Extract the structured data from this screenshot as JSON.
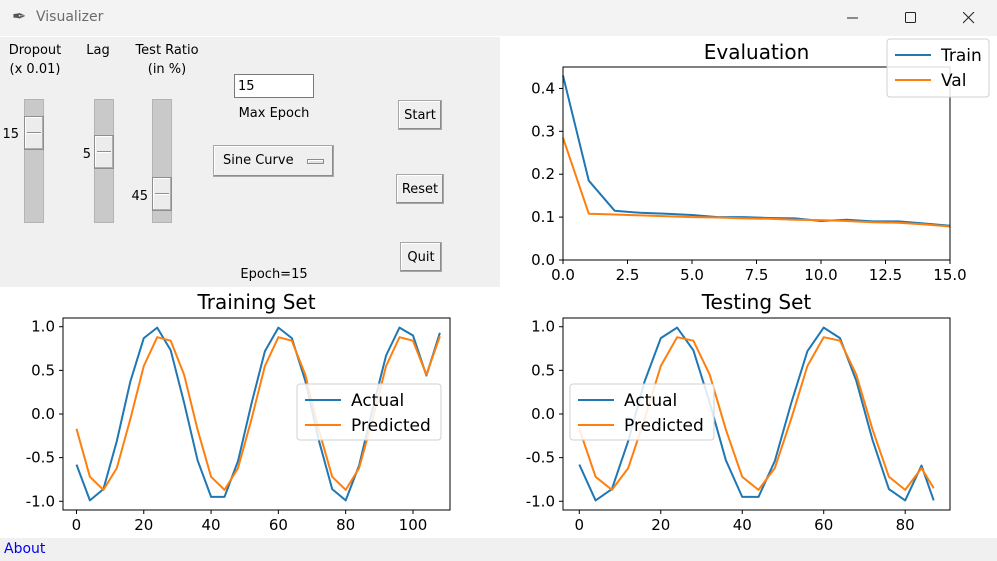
{
  "window": {
    "title": "Visualizer",
    "app_icon": "feather-icon",
    "controls": [
      "minimize-icon",
      "maximize-icon",
      "close-icon"
    ]
  },
  "controls": {
    "dropout": {
      "label_line1": "Dropout",
      "label_line2": "(x 0.01)",
      "value": 15,
      "min": 0,
      "max": 100
    },
    "lag": {
      "label": "Lag",
      "value": 5,
      "min": 0,
      "max": 20
    },
    "test_ratio": {
      "label_line1": "Test Ratio",
      "label_line2": "(in %)",
      "value": 45,
      "min": 0,
      "max": 75
    },
    "max_epoch": {
      "value": "15",
      "label": "Max Epoch"
    },
    "dataset": {
      "selected": "Sine Curve"
    },
    "epoch_status": "Epoch=15",
    "buttons": {
      "start": "Start",
      "reset": "Reset",
      "quit": "Quit"
    }
  },
  "footer": {
    "about": "About"
  },
  "colors": {
    "blue": "#1f77b4",
    "orange": "#ff7f0e"
  },
  "chart_data": [
    {
      "type": "line",
      "title": "Evaluation",
      "xlim": [
        0,
        15
      ],
      "ylim": [
        0,
        0.45
      ],
      "xticks": [
        "0.0",
        "2.5",
        "5.0",
        "7.5",
        "10.0",
        "12.5",
        "15.0"
      ],
      "yticks": [
        "0.0",
        "0.1",
        "0.2",
        "0.3",
        "0.4"
      ],
      "legend": "top-right",
      "x": [
        0,
        1,
        2,
        3,
        4,
        5,
        6,
        7,
        8,
        9,
        10,
        11,
        12,
        13,
        14,
        15
      ],
      "series": [
        {
          "name": "Train",
          "values": [
            0.43,
            0.185,
            0.115,
            0.11,
            0.108,
            0.105,
            0.1,
            0.1,
            0.098,
            0.097,
            0.091,
            0.094,
            0.09,
            0.09,
            0.085,
            0.08
          ]
        },
        {
          "name": "Val",
          "values": [
            0.285,
            0.108,
            0.106,
            0.104,
            0.102,
            0.1,
            0.099,
            0.097,
            0.096,
            0.094,
            0.093,
            0.091,
            0.088,
            0.087,
            0.083,
            0.078
          ]
        }
      ]
    },
    {
      "type": "line",
      "title": "Training Set",
      "xlim": [
        -4,
        111
      ],
      "ylim": [
        -1.1,
        1.1
      ],
      "xticks": [
        "0",
        "20",
        "40",
        "60",
        "80",
        "100"
      ],
      "yticks": [
        "-1.0",
        "-0.5",
        "0.0",
        "0.5",
        "1.0"
      ],
      "legend": "center-right",
      "x": [
        0,
        4,
        8,
        12,
        16,
        20,
        24,
        28,
        32,
        36,
        40,
        44,
        48,
        52,
        56,
        60,
        64,
        68,
        72,
        76,
        80,
        84,
        88,
        92,
        96,
        100,
        104,
        108
      ],
      "series": [
        {
          "name": "Actual",
          "values": [
            -0.58,
            -0.99,
            -0.86,
            -0.31,
            0.37,
            0.87,
            0.99,
            0.73,
            0.13,
            -0.53,
            -0.95,
            -0.95,
            -0.54,
            0.12,
            0.72,
            0.99,
            0.87,
            0.38,
            -0.3,
            -0.86,
            -0.99,
            -0.59,
            0.06,
            0.67,
            0.99,
            0.9,
            0.44,
            0.93
          ]
        },
        {
          "name": "Predicted",
          "values": [
            -0.17,
            -0.72,
            -0.87,
            -0.62,
            -0.06,
            0.55,
            0.88,
            0.84,
            0.45,
            -0.18,
            -0.72,
            -0.87,
            -0.62,
            -0.06,
            0.55,
            0.88,
            0.84,
            0.45,
            -0.18,
            -0.72,
            -0.87,
            -0.62,
            -0.06,
            0.55,
            0.88,
            0.84,
            0.45,
            0.89
          ]
        }
      ]
    },
    {
      "type": "line",
      "title": "Testing Set",
      "xlim": [
        -4,
        91
      ],
      "ylim": [
        -1.1,
        1.1
      ],
      "xticks": [
        "0",
        "20",
        "40",
        "60",
        "80"
      ],
      "yticks": [
        "-1.0",
        "-0.5",
        "0.0",
        "0.5",
        "1.0"
      ],
      "legend": "center-left",
      "x": [
        0,
        4,
        8,
        12,
        16,
        20,
        24,
        28,
        32,
        36,
        40,
        44,
        48,
        52,
        56,
        60,
        64,
        68,
        72,
        76,
        80,
        84,
        87
      ],
      "series": [
        {
          "name": "Actual",
          "values": [
            -0.58,
            -0.99,
            -0.86,
            -0.31,
            0.37,
            0.87,
            0.99,
            0.73,
            0.13,
            -0.53,
            -0.95,
            -0.95,
            -0.54,
            0.12,
            0.72,
            0.99,
            0.87,
            0.38,
            -0.3,
            -0.86,
            -0.99,
            -0.59,
            -0.99
          ]
        },
        {
          "name": "Predicted",
          "values": [
            -0.17,
            -0.72,
            -0.87,
            -0.62,
            -0.06,
            0.55,
            0.88,
            0.84,
            0.45,
            -0.18,
            -0.72,
            -0.87,
            -0.62,
            -0.06,
            0.55,
            0.88,
            0.84,
            0.45,
            -0.18,
            -0.72,
            -0.87,
            -0.62,
            -0.85
          ]
        }
      ]
    }
  ]
}
